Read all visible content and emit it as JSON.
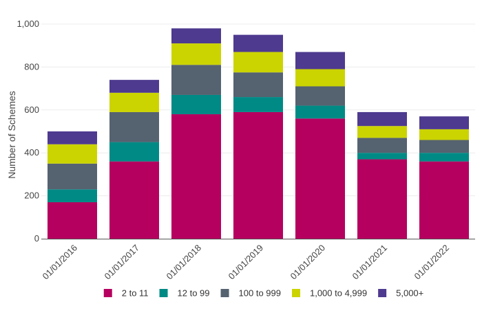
{
  "chart_data": {
    "type": "bar",
    "stacked": true,
    "title": "",
    "xlabel": "",
    "ylabel": "Number of Schemes",
    "ylim": [
      0,
      1000
    ],
    "yticks": [
      0,
      200,
      400,
      600,
      800,
      1000
    ],
    "ytick_labels": [
      "0",
      "200",
      "400",
      "600",
      "800",
      "1,000"
    ],
    "grid": true,
    "legend_position": "bottom",
    "categories": [
      "01/01/2016",
      "01/01/2017",
      "01/01/2018",
      "01/01/2019",
      "01/01/2020",
      "01/01/2021",
      "01/01/2022"
    ],
    "series": [
      {
        "name": "2 to 11",
        "color": "#b5005f",
        "values": [
          170,
          360,
          580,
          590,
          560,
          370,
          360
        ]
      },
      {
        "name": "12 to 99",
        "color": "#008a85",
        "values": [
          60,
          90,
          90,
          70,
          60,
          30,
          40
        ]
      },
      {
        "name": "100 to 999",
        "color": "#556270",
        "values": [
          120,
          140,
          140,
          115,
          90,
          70,
          60
        ]
      },
      {
        "name": "1,000 to 4,999",
        "color": "#cbd400",
        "values": [
          90,
          90,
          100,
          95,
          80,
          55,
          50
        ]
      },
      {
        "name": "5,000+",
        "color": "#4e3a8f",
        "values": [
          60,
          60,
          70,
          80,
          80,
          65,
          60
        ]
      }
    ]
  }
}
